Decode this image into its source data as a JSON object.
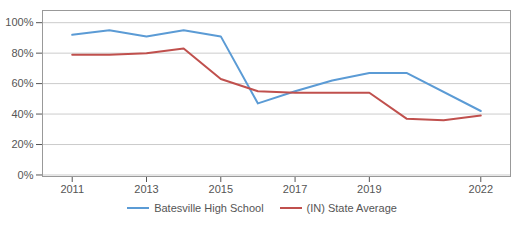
{
  "chart_data": {
    "type": "line",
    "series": [
      {
        "name": "Batesville High School",
        "color": "#5b9bd5",
        "x": [
          2011,
          2012,
          2013,
          2014,
          2015,
          2016,
          2017,
          2018,
          2019,
          2020,
          2022
        ],
        "values": [
          0.92,
          0.95,
          0.91,
          0.95,
          0.91,
          0.47,
          0.55,
          0.62,
          0.67,
          0.67,
          0.42
        ]
      },
      {
        "name": "(IN) State Average",
        "color": "#c0504d",
        "x": [
          2011,
          2012,
          2013,
          2014,
          2015,
          2016,
          2017,
          2018,
          2019,
          2020,
          2021,
          2022
        ],
        "values": [
          0.79,
          0.79,
          0.8,
          0.83,
          0.63,
          0.55,
          0.54,
          0.54,
          0.54,
          0.37,
          0.36,
          0.39
        ]
      }
    ],
    "xlim": [
      2010.2,
      2022.8
    ],
    "xticks": [
      2011,
      2013,
      2015,
      2017,
      2019,
      2022
    ],
    "ylim": [
      -0.01,
      1.08
    ],
    "yticks": [
      {
        "value": 0.0,
        "label": "0%"
      },
      {
        "value": 0.2,
        "label": "20%"
      },
      {
        "value": 0.4,
        "label": "40%"
      },
      {
        "value": 0.6,
        "label": "60%"
      },
      {
        "value": 0.8,
        "label": "80%"
      },
      {
        "value": 1.0,
        "label": "100%"
      }
    ],
    "grid": "y",
    "legend": "bottom"
  }
}
